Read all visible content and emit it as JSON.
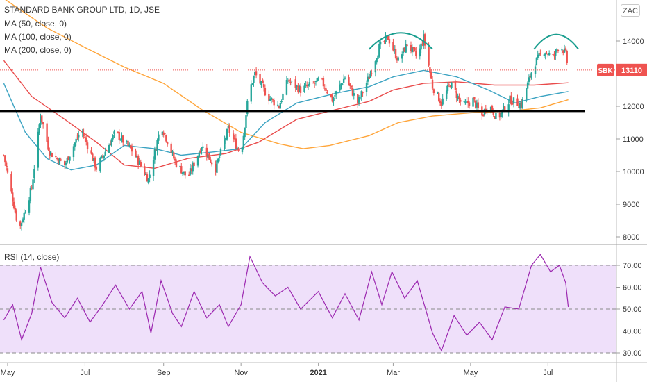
{
  "header": {
    "symbol_title": "STANDARD BANK GROUP LTD, 1D, JSE",
    "indicators": [
      "MA (50, close, 0)",
      "MA (100, close, 0)",
      "MA (200, close, 0)"
    ],
    "currency_button": "ZAC"
  },
  "rsi_panel": {
    "label": "RSI (14, close)"
  },
  "price_tag": {
    "symbol": "SBK",
    "value": "13110"
  },
  "colors": {
    "up": "#26a69a",
    "down": "#ef5350",
    "ma50": "#3ba3c2",
    "ma100": "#e94b4b",
    "ma200": "#ffa53a",
    "rsi_line": "#9c27b0",
    "rsi_band": "#efe0fa",
    "arc": "#1a9e8f",
    "support": "#000000"
  },
  "chart_data": {
    "type": "candlestick",
    "symbol": "SBK",
    "interval": "1D",
    "last_price": 13110,
    "y_ticks": [
      8000,
      9000,
      10000,
      11000,
      12000,
      13000,
      14000
    ],
    "y_tick_labels": [
      "8000",
      "9000",
      "10000",
      "11000",
      "12000",
      "",
      "14000"
    ],
    "x_ticks": [
      "May",
      "Jul",
      "Sep",
      "Nov",
      "2021",
      "Mar",
      "May",
      "Jul"
    ],
    "support_level": 11850,
    "price_path": [
      [
        "2020-04-28",
        10500
      ],
      [
        "2020-05-10",
        8200
      ],
      [
        "2020-05-20",
        9500
      ],
      [
        "2020-05-27",
        11750
      ],
      [
        "2020-06-03",
        10600
      ],
      [
        "2020-06-15",
        10200
      ],
      [
        "2020-06-28",
        11300
      ],
      [
        "2020-07-10",
        10100
      ],
      [
        "2020-07-25",
        11200
      ],
      [
        "2020-08-08",
        10600
      ],
      [
        "2020-08-20",
        9750
      ],
      [
        "2020-08-30",
        11450
      ],
      [
        "2020-09-10",
        10300
      ],
      [
        "2020-09-20",
        9800
      ],
      [
        "2020-10-01",
        10800
      ],
      [
        "2020-10-12",
        10100
      ],
      [
        "2020-10-22",
        11300
      ],
      [
        "2020-11-01",
        10500
      ],
      [
        "2020-11-07",
        12400
      ],
      [
        "2020-11-12",
        13000
      ],
      [
        "2020-11-22",
        12300
      ],
      [
        "2020-12-01",
        12000
      ],
      [
        "2020-12-08",
        12800
      ],
      [
        "2020-12-18",
        12500
      ],
      [
        "2021-01-03",
        12800
      ],
      [
        "2021-01-12",
        12200
      ],
      [
        "2021-01-22",
        12900
      ],
      [
        "2021-02-01",
        12100
      ],
      [
        "2021-02-10",
        12900
      ],
      [
        "2021-02-18",
        13800
      ],
      [
        "2021-02-25",
        14100
      ],
      [
        "2021-03-05",
        13400
      ],
      [
        "2021-03-12",
        13900
      ],
      [
        "2021-03-20",
        13500
      ],
      [
        "2021-03-25",
        14100
      ],
      [
        "2021-04-01",
        12600
      ],
      [
        "2021-04-08",
        12100
      ],
      [
        "2021-04-15",
        12700
      ],
      [
        "2021-04-25",
        12000
      ],
      [
        "2021-05-03",
        12200
      ],
      [
        "2021-05-10",
        11700
      ],
      [
        "2021-05-15",
        12100
      ],
      [
        "2021-05-22",
        11600
      ],
      [
        "2021-06-01",
        12200
      ],
      [
        "2021-06-10",
        12050
      ],
      [
        "2021-06-20",
        13300
      ],
      [
        "2021-06-28",
        13700
      ],
      [
        "2021-07-05",
        13500
      ],
      [
        "2021-07-10",
        13900
      ],
      [
        "2021-07-15",
        13600
      ],
      [
        "2021-07-17",
        13110
      ]
    ],
    "ma50_path": [
      [
        "2020-04-28",
        12700
      ],
      [
        "2020-05-15",
        11200
      ],
      [
        "2020-06-01",
        10400
      ],
      [
        "2020-06-20",
        10050
      ],
      [
        "2020-07-10",
        10200
      ],
      [
        "2020-08-01",
        10800
      ],
      [
        "2020-08-25",
        10700
      ],
      [
        "2020-09-15",
        10500
      ],
      [
        "2020-10-10",
        10600
      ],
      [
        "2020-11-01",
        10700
      ],
      [
        "2020-11-20",
        11500
      ],
      [
        "2020-12-15",
        12100
      ],
      [
        "2021-01-15",
        12400
      ],
      [
        "2021-02-10",
        12600
      ],
      [
        "2021-03-01",
        12900
      ],
      [
        "2021-03-25",
        13100
      ],
      [
        "2021-04-20",
        12900
      ],
      [
        "2021-05-15",
        12500
      ],
      [
        "2021-06-05",
        12100
      ],
      [
        "2021-06-25",
        12300
      ],
      [
        "2021-07-17",
        12450
      ]
    ],
    "ma100_path": [
      [
        "2020-04-28",
        13400
      ],
      [
        "2020-05-20",
        12300
      ],
      [
        "2020-06-15",
        11600
      ],
      [
        "2020-07-10",
        10900
      ],
      [
        "2020-08-01",
        10200
      ],
      [
        "2020-08-25",
        10100
      ],
      [
        "2020-09-20",
        10400
      ],
      [
        "2020-10-20",
        10550
      ],
      [
        "2020-11-15",
        10900
      ],
      [
        "2020-12-15",
        11600
      ],
      [
        "2021-01-15",
        11900
      ],
      [
        "2021-02-10",
        12150
      ],
      [
        "2021-03-01",
        12500
      ],
      [
        "2021-03-25",
        12700
      ],
      [
        "2021-04-20",
        12750
      ],
      [
        "2021-05-20",
        12650
      ],
      [
        "2021-06-20",
        12650
      ],
      [
        "2021-07-17",
        12720
      ]
    ],
    "ma200_path": [
      [
        "2020-04-28",
        15300
      ],
      [
        "2020-06-01",
        14400
      ],
      [
        "2020-07-01",
        13800
      ],
      [
        "2020-08-01",
        13200
      ],
      [
        "2020-09-01",
        12700
      ],
      [
        "2020-10-01",
        11900
      ],
      [
        "2020-11-01",
        11200
      ],
      [
        "2020-12-01",
        10850
      ],
      [
        "2020-12-20",
        10700
      ],
      [
        "2021-01-10",
        10800
      ],
      [
        "2021-02-10",
        11100
      ],
      [
        "2021-03-05",
        11500
      ],
      [
        "2021-04-01",
        11700
      ],
      [
        "2021-05-01",
        11800
      ],
      [
        "2021-06-01",
        11850
      ],
      [
        "2021-06-25",
        11950
      ],
      [
        "2021-07-17",
        12200
      ]
    ],
    "rsi_ticks": [
      30,
      40,
      50,
      60,
      70
    ],
    "rsi_tick_labels": [
      "30.00",
      "40.00",
      "50.00",
      "60.00",
      "70.00"
    ],
    "rsi_upper": 70,
    "rsi_lower": 30,
    "rsi_path": [
      [
        "2020-04-28",
        45
      ],
      [
        "2020-05-05",
        52
      ],
      [
        "2020-05-12",
        36
      ],
      [
        "2020-05-20",
        48
      ],
      [
        "2020-05-27",
        69
      ],
      [
        "2020-06-05",
        53
      ],
      [
        "2020-06-15",
        46
      ],
      [
        "2020-06-25",
        55
      ],
      [
        "2020-07-05",
        44
      ],
      [
        "2020-07-15",
        52
      ],
      [
        "2020-07-25",
        61
      ],
      [
        "2020-08-05",
        50
      ],
      [
        "2020-08-15",
        58
      ],
      [
        "2020-08-22",
        39
      ],
      [
        "2020-08-30",
        63
      ],
      [
        "2020-09-08",
        48
      ],
      [
        "2020-09-15",
        42
      ],
      [
        "2020-09-25",
        58
      ],
      [
        "2020-10-05",
        46
      ],
      [
        "2020-10-15",
        52
      ],
      [
        "2020-10-22",
        42
      ],
      [
        "2020-11-01",
        52
      ],
      [
        "2020-11-08",
        74
      ],
      [
        "2020-11-18",
        62
      ],
      [
        "2020-11-28",
        56
      ],
      [
        "2020-12-08",
        60
      ],
      [
        "2020-12-18",
        50
      ],
      [
        "2021-01-01",
        58
      ],
      [
        "2021-01-12",
        46
      ],
      [
        "2021-01-22",
        57
      ],
      [
        "2021-02-02",
        45
      ],
      [
        "2021-02-12",
        67
      ],
      [
        "2021-02-20",
        52
      ],
      [
        "2021-02-28",
        67
      ],
      [
        "2021-03-10",
        55
      ],
      [
        "2021-03-20",
        63
      ],
      [
        "2021-04-01",
        39
      ],
      [
        "2021-04-08",
        31
      ],
      [
        "2021-04-18",
        47
      ],
      [
        "2021-04-28",
        38
      ],
      [
        "2021-05-08",
        44
      ],
      [
        "2021-05-18",
        36
      ],
      [
        "2021-05-28",
        51
      ],
      [
        "2021-06-08",
        50
      ],
      [
        "2021-06-18",
        70
      ],
      [
        "2021-06-25",
        75
      ],
      [
        "2021-07-03",
        67
      ],
      [
        "2021-07-10",
        70
      ],
      [
        "2021-07-15",
        62
      ],
      [
        "2021-07-17",
        51
      ]
    ]
  }
}
